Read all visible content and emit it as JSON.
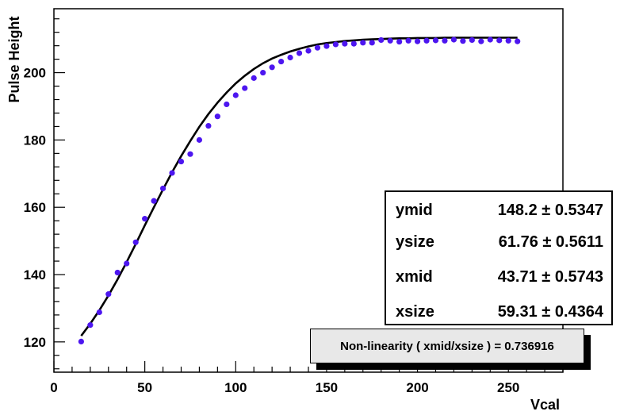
{
  "chart_data": {
    "type": "scatter",
    "xlabel": "Vcal",
    "ylabel": "Pulse Height",
    "xlim": [
      0,
      280
    ],
    "ylim": [
      111,
      219
    ],
    "x_ticks": [
      0,
      50,
      100,
      150,
      200,
      250
    ],
    "y_ticks": [
      120,
      140,
      160,
      180,
      200
    ],
    "grid": false,
    "series": [
      {
        "x": [
          15,
          20,
          25,
          30,
          35,
          40,
          45,
          50,
          55,
          60,
          65,
          70,
          75,
          80,
          85,
          90,
          95,
          100,
          105,
          110,
          115,
          120,
          125,
          130,
          135,
          140,
          145,
          150,
          155,
          160,
          165,
          170,
          175,
          180,
          185,
          190,
          195,
          200,
          205,
          210,
          215,
          220,
          225,
          230,
          235,
          240,
          245,
          250,
          255
        ],
        "y": [
          120.1,
          125.0,
          128.8,
          134.2,
          140.6,
          143.3,
          149.6,
          156.6,
          161.9,
          165.6,
          170.2,
          173.6,
          175.8,
          180.0,
          184.2,
          187.0,
          190.6,
          193.3,
          195.4,
          198.4,
          200.0,
          201.6,
          203.3,
          204.5,
          205.8,
          206.5,
          207.4,
          207.9,
          208.4,
          208.6,
          208.6,
          208.9,
          208.9,
          209.7,
          209.5,
          209.2,
          209.5,
          209.3,
          209.5,
          209.6,
          209.5,
          209.8,
          209.4,
          209.7,
          209.3,
          209.8,
          209.6,
          209.5,
          209.3
        ],
        "color": "#4d16f0"
      }
    ],
    "fit_curve": {
      "color": "#000000",
      "x": [
        15,
        20,
        25,
        30,
        35,
        40,
        45,
        50,
        55,
        60,
        65,
        70,
        75,
        80,
        85,
        90,
        95,
        100,
        105,
        110,
        115,
        120,
        125,
        130,
        135,
        140,
        145,
        150,
        155,
        160,
        165,
        170,
        175,
        180,
        185,
        190,
        195,
        200,
        205,
        210,
        215,
        220,
        225,
        230,
        235,
        240,
        245,
        250,
        255
      ],
      "y": [
        121.8,
        125.4,
        129.4,
        133.8,
        138.6,
        143.7,
        149.1,
        154.6,
        160.0,
        165.3,
        170.4,
        175.2,
        179.7,
        183.9,
        187.7,
        191.1,
        194.1,
        196.8,
        199.1,
        201.1,
        202.8,
        204.2,
        205.3,
        206.3,
        207.1,
        207.8,
        208.4,
        208.8,
        209.1,
        209.4,
        209.6,
        209.8,
        209.9,
        210.0,
        210.1,
        210.2,
        210.2,
        210.3,
        210.3,
        210.3,
        210.4,
        210.4,
        210.4,
        210.4,
        210.4,
        210.4,
        210.4,
        210.4,
        210.4
      ]
    },
    "stats": [
      {
        "name": "ymid",
        "value": "148.2 ± 0.5347"
      },
      {
        "name": "ysize",
        "value": "61.76 ± 0.5611"
      },
      {
        "name": "xmid",
        "value": "43.71 ± 0.5743"
      },
      {
        "name": "xsize",
        "value": "59.31 ± 0.4364"
      }
    ],
    "annotation": "Non-linearity ( xmid/xsize ) = 0.736916"
  }
}
